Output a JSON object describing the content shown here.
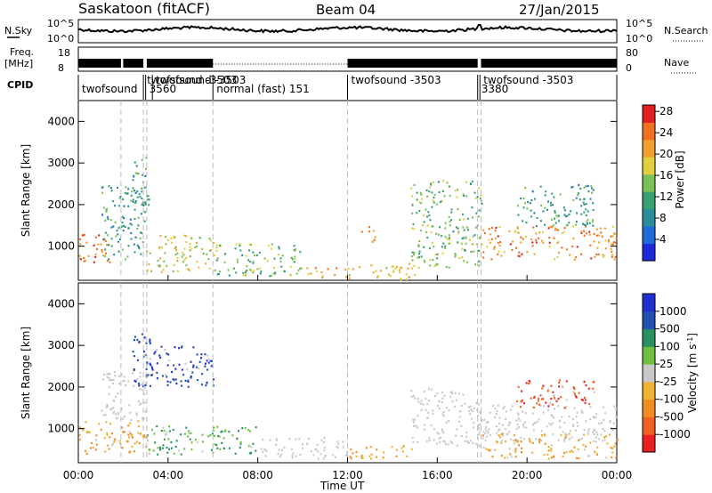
{
  "header": {
    "site": "Saskatoon (fitACF)",
    "beam": "Beam 04",
    "date": "27/Jan/2015"
  },
  "labels": {
    "nsky": "N.Sky",
    "freq_line1": "Freq.",
    "freq_line2": "[MHz]",
    "cpid": "CPID",
    "nsearch": "N.Search",
    "nave": "Nave",
    "xlabel": "Time UT"
  },
  "ticks": {
    "nsky": [
      "10^5",
      "10^0"
    ],
    "nsearch": [
      "10^5",
      "10^0"
    ],
    "freq": [
      "18",
      "8"
    ],
    "nave": [
      "80",
      "0"
    ],
    "x": [
      "00:00",
      "04:00",
      "08:00",
      "12:00",
      "16:00",
      "20:00",
      "00:00"
    ]
  },
  "cpid_segments": [
    {
      "label": "twofsound",
      "row": 2,
      "start": 0.0
    },
    {
      "label": "twofsound -3503",
      "row": 1,
      "start": 2.9
    },
    {
      "label": "3560",
      "row": 2,
      "start": 3.0
    },
    {
      "label": "twofsound -3503",
      "row": 1,
      "start": 3.3
    },
    {
      "label": "normal (fast) 151",
      "row": 2,
      "start": 6.0
    },
    {
      "label": "twofsound -3503",
      "row": 1,
      "start": 12.0
    },
    {
      "label": "3380",
      "row": 2,
      "start": 17.8
    },
    {
      "label": "twofsound -3503",
      "row": 1,
      "start": 17.9
    }
  ],
  "colors": {
    "power": [
      "#1e2ad8",
      "#1e6ad8",
      "#2c8c9c",
      "#3aa070",
      "#7cc058",
      "#e0d040",
      "#f0a030",
      "#f07020",
      "#e02020"
    ],
    "velocity": [
      "#e82020",
      "#f06020",
      "#f08c20",
      "#f0b030",
      "#c8c8c8",
      "#70c040",
      "#2a9060",
      "#2050b0",
      "#2030d0"
    ]
  },
  "chart_data": [
    {
      "type": "heatmap",
      "title": "",
      "xlabel": "",
      "ylabel": "Slant Range [km]",
      "xlim": [
        0,
        24
      ],
      "ylim": [
        180,
        4500
      ],
      "yticks": [
        "1000",
        "2000",
        "3000",
        "4000"
      ],
      "colorbar": {
        "label": "Power [dB]",
        "ticks": [
          "4",
          "8",
          "12",
          "16",
          "20",
          "24",
          "28"
        ],
        "range": [
          0,
          30
        ]
      },
      "dashed_lines_ut": [
        1.9,
        2.9,
        3.05,
        6.0,
        12.0,
        17.8,
        17.95
      ],
      "regions": [
        {
          "t": [
            0.0,
            1.5
          ],
          "r": [
            600,
            1300
          ],
          "power": 26
        },
        {
          "t": [
            1.0,
            3.0
          ],
          "r": [
            700,
            2500
          ],
          "power": 10
        },
        {
          "t": [
            2.4,
            3.2
          ],
          "r": [
            2000,
            3300
          ],
          "power": 12
        },
        {
          "t": [
            3.0,
            6.0
          ],
          "r": [
            400,
            1300
          ],
          "power": 18
        },
        {
          "t": [
            6.0,
            10.0
          ],
          "r": [
            300,
            1100
          ],
          "power": 14
        },
        {
          "t": [
            10.0,
            12.0
          ],
          "r": [
            250,
            500
          ],
          "power": 22
        },
        {
          "t": [
            12.5,
            13.2
          ],
          "r": [
            1100,
            1500
          ],
          "power": 28
        },
        {
          "t": [
            12.0,
            15.0
          ],
          "r": [
            200,
            600
          ],
          "power": 20
        },
        {
          "t": [
            14.8,
            18.0
          ],
          "r": [
            500,
            2600
          ],
          "power": 14
        },
        {
          "t": [
            18.0,
            24.0
          ],
          "r": [
            700,
            1500
          ],
          "power": 24
        },
        {
          "t": [
            19.5,
            23.0
          ],
          "r": [
            1500,
            2500
          ],
          "power": 10
        }
      ]
    },
    {
      "type": "heatmap",
      "title": "",
      "xlabel": "Time UT",
      "ylabel": "Slant Range [km]",
      "xlim": [
        0,
        24
      ],
      "ylim": [
        180,
        4500
      ],
      "yticks": [
        "1000",
        "2000",
        "3000",
        "4000"
      ],
      "colorbar": {
        "label": "Velocity [m s^-1]",
        "ticks": [
          "1000",
          "500",
          "100",
          "25",
          "-25",
          "-100",
          "-500",
          "-1000"
        ]
      },
      "dashed_lines_ut": [
        1.9,
        2.9,
        3.05,
        6.0,
        12.0,
        17.8,
        17.95
      ],
      "regions": [
        {
          "t": [
            0.0,
            3.0
          ],
          "r": [
            400,
            1200
          ],
          "velocity": -100
        },
        {
          "t": [
            1.0,
            3.0
          ],
          "r": [
            1200,
            2400
          ],
          "velocity": 0
        },
        {
          "t": [
            2.4,
            3.2
          ],
          "r": [
            2000,
            3300
          ],
          "velocity": 500
        },
        {
          "t": [
            3.0,
            6.0
          ],
          "r": [
            2000,
            3000
          ],
          "velocity": 500
        },
        {
          "t": [
            3.0,
            8.0
          ],
          "r": [
            400,
            1100
          ],
          "velocity": 100
        },
        {
          "t": [
            8.0,
            12.0
          ],
          "r": [
            300,
            800
          ],
          "velocity": 0
        },
        {
          "t": [
            12.0,
            15.0
          ],
          "r": [
            300,
            600
          ],
          "velocity": -100
        },
        {
          "t": [
            14.8,
            18.0
          ],
          "r": [
            600,
            2000
          ],
          "velocity": 0
        },
        {
          "t": [
            18.0,
            24.0
          ],
          "r": [
            700,
            1600
          ],
          "velocity": 0
        },
        {
          "t": [
            18.0,
            24.0
          ],
          "r": [
            300,
            900
          ],
          "velocity": -100
        },
        {
          "t": [
            19.5,
            23.0
          ],
          "r": [
            1500,
            2200
          ],
          "velocity": -500
        }
      ]
    }
  ]
}
